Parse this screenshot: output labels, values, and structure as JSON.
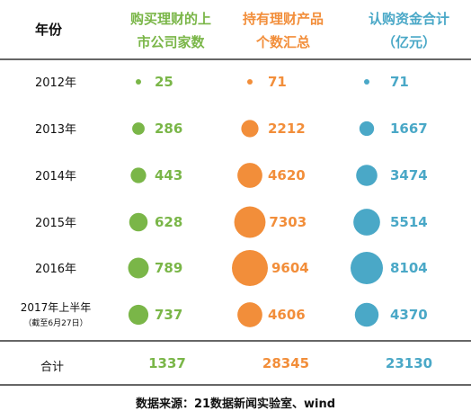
{
  "chart_data": {
    "type": "table",
    "row_header": "年份",
    "columns": [
      {
        "title_line1": "购买理财的上",
        "title_line2": "市公司家数",
        "color": "#7ab648"
      },
      {
        "title_line1": "持有理财产品",
        "title_line2": "个数汇总",
        "color": "#f28e3a"
      },
      {
        "title_line1": "认购资金合计",
        "title_line2": "（亿元）",
        "color": "#4aa8c7"
      }
    ],
    "rows": [
      {
        "year": "2012年",
        "note": "",
        "values": [
          25,
          71,
          71
        ]
      },
      {
        "year": "2013年",
        "note": "",
        "values": [
          286,
          2212,
          1667
        ]
      },
      {
        "year": "2014年",
        "note": "",
        "values": [
          443,
          4620,
          3474
        ]
      },
      {
        "year": "2015年",
        "note": "",
        "values": [
          628,
          7303,
          5514
        ]
      },
      {
        "year": "2016年",
        "note": "",
        "values": [
          789,
          9604,
          8104
        ]
      },
      {
        "year": "2017年上半年",
        "note": "（截至6月27日）",
        "values": [
          737,
          4606,
          4370
        ]
      }
    ],
    "total": {
      "label": "合计",
      "values": [
        1337,
        28345,
        23130
      ]
    },
    "source": "数据来源：21数据新闻实验室、wind"
  }
}
